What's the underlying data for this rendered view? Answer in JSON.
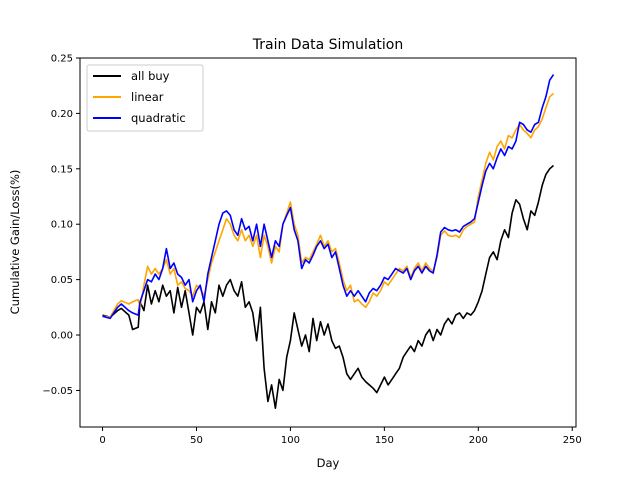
{
  "chart_data": {
    "type": "line",
    "title": "Train Data Simulation",
    "xlabel": "Day",
    "ylabel": "Cumulative Gain/Loss(%)",
    "xlim": [
      -12,
      252
    ],
    "ylim": [
      -0.083,
      0.25
    ],
    "xticks": [
      0,
      50,
      100,
      150,
      200,
      250
    ],
    "yticks": [
      -0.05,
      0.0,
      0.05,
      0.1,
      0.15,
      0.2,
      0.25
    ],
    "xtick_labels": [
      "0",
      "50",
      "100",
      "150",
      "200",
      "250"
    ],
    "ytick_labels": [
      "−0.05",
      "0.00",
      "0.05",
      "0.10",
      "0.15",
      "0.20",
      "0.25"
    ],
    "grid": false,
    "legend_position": "top-left",
    "series": [
      {
        "name": "all buy",
        "color": "#000000",
        "x": [
          0,
          4,
          8,
          10,
          14,
          16,
          19,
          20,
          22,
          24,
          26,
          28,
          30,
          32,
          34,
          36,
          38,
          40,
          42,
          44,
          46,
          48,
          50,
          52,
          54,
          56,
          58,
          60,
          62,
          64,
          66,
          68,
          70,
          72,
          74,
          76,
          78,
          80,
          82,
          84,
          86,
          88,
          90,
          92,
          94,
          96,
          98,
          100,
          102,
          104,
          106,
          108,
          110,
          112,
          114,
          116,
          118,
          120,
          122,
          124,
          126,
          128,
          130,
          132,
          134,
          136,
          138,
          140,
          142,
          144,
          146,
          148,
          150,
          152,
          154,
          156,
          158,
          160,
          162,
          164,
          166,
          168,
          170,
          172,
          174,
          176,
          178,
          180,
          182,
          184,
          186,
          188,
          190,
          192,
          194,
          196,
          198,
          200,
          202,
          204,
          206,
          208,
          210,
          212,
          214,
          216,
          218,
          220,
          222,
          224,
          226,
          228,
          230,
          232,
          234,
          236,
          238,
          240
        ],
        "values": [
          0.018,
          0.016,
          0.022,
          0.024,
          0.018,
          0.005,
          0.007,
          0.03,
          0.022,
          0.045,
          0.028,
          0.04,
          0.03,
          0.045,
          0.035,
          0.04,
          0.02,
          0.043,
          0.025,
          0.04,
          0.02,
          0.0,
          0.025,
          0.02,
          0.03,
          0.005,
          0.03,
          0.02,
          0.045,
          0.035,
          0.045,
          0.05,
          0.04,
          0.035,
          0.048,
          0.025,
          0.03,
          0.02,
          -0.005,
          0.025,
          -0.03,
          -0.06,
          -0.045,
          -0.066,
          -0.04,
          -0.05,
          -0.02,
          -0.005,
          0.02,
          0.005,
          -0.01,
          0.0,
          -0.015,
          0.015,
          -0.005,
          0.012,
          0.0,
          0.01,
          -0.005,
          -0.012,
          -0.01,
          -0.02,
          -0.035,
          -0.04,
          -0.035,
          -0.03,
          -0.038,
          -0.042,
          -0.045,
          -0.048,
          -0.052,
          -0.045,
          -0.038,
          -0.045,
          -0.04,
          -0.035,
          -0.03,
          -0.02,
          -0.015,
          -0.01,
          -0.015,
          -0.005,
          -0.01,
          0.0,
          0.005,
          -0.005,
          0.005,
          0.0,
          0.01,
          0.015,
          0.01,
          0.018,
          0.02,
          0.015,
          0.02,
          0.018,
          0.022,
          0.03,
          0.04,
          0.055,
          0.07,
          0.075,
          0.068,
          0.085,
          0.095,
          0.088,
          0.11,
          0.122,
          0.118,
          0.105,
          0.095,
          0.112,
          0.108,
          0.12,
          0.135,
          0.145,
          0.15,
          0.153
        ]
      },
      {
        "name": "linear",
        "color": "#FFA500",
        "x": [
          0,
          4,
          8,
          10,
          14,
          16,
          19,
          20,
          22,
          24,
          26,
          28,
          30,
          32,
          34,
          36,
          38,
          40,
          42,
          44,
          46,
          48,
          50,
          52,
          54,
          56,
          58,
          60,
          62,
          64,
          66,
          68,
          70,
          72,
          74,
          76,
          78,
          80,
          82,
          84,
          86,
          88,
          90,
          92,
          94,
          96,
          98,
          100,
          102,
          104,
          106,
          108,
          110,
          112,
          114,
          116,
          118,
          120,
          122,
          124,
          126,
          128,
          130,
          132,
          134,
          136,
          138,
          140,
          142,
          144,
          146,
          148,
          150,
          152,
          154,
          156,
          158,
          160,
          162,
          164,
          166,
          168,
          170,
          172,
          174,
          176,
          178,
          180,
          182,
          184,
          186,
          188,
          190,
          192,
          194,
          196,
          198,
          200,
          202,
          204,
          206,
          208,
          210,
          212,
          214,
          216,
          218,
          220,
          222,
          224,
          226,
          228,
          230,
          232,
          234,
          236,
          238,
          240
        ],
        "values": [
          0.017,
          0.016,
          0.028,
          0.031,
          0.028,
          0.03,
          0.032,
          0.025,
          0.045,
          0.062,
          0.055,
          0.06,
          0.055,
          0.06,
          0.068,
          0.055,
          0.06,
          0.045,
          0.048,
          0.042,
          0.04,
          0.035,
          0.045,
          0.042,
          0.035,
          0.05,
          0.065,
          0.075,
          0.085,
          0.095,
          0.105,
          0.1,
          0.09,
          0.085,
          0.095,
          0.085,
          0.09,
          0.08,
          0.09,
          0.07,
          0.09,
          0.08,
          0.065,
          0.08,
          0.075,
          0.1,
          0.11,
          0.12,
          0.1,
          0.09,
          0.065,
          0.07,
          0.068,
          0.075,
          0.082,
          0.09,
          0.08,
          0.085,
          0.075,
          0.078,
          0.065,
          0.05,
          0.04,
          0.045,
          0.03,
          0.032,
          0.028,
          0.025,
          0.03,
          0.038,
          0.035,
          0.04,
          0.048,
          0.045,
          0.05,
          0.055,
          0.06,
          0.058,
          0.062,
          0.052,
          0.06,
          0.065,
          0.058,
          0.065,
          0.06,
          0.058,
          0.07,
          0.09,
          0.094,
          0.09,
          0.089,
          0.09,
          0.088,
          0.095,
          0.098,
          0.1,
          0.102,
          0.125,
          0.14,
          0.155,
          0.165,
          0.158,
          0.17,
          0.175,
          0.168,
          0.18,
          0.178,
          0.185,
          0.19,
          0.185,
          0.182,
          0.178,
          0.185,
          0.188,
          0.195,
          0.205,
          0.215,
          0.218
        ]
      },
      {
        "name": "quadratic",
        "color": "#0000FF",
        "x": [
          0,
          4,
          8,
          10,
          14,
          16,
          19,
          20,
          22,
          24,
          26,
          28,
          30,
          32,
          34,
          36,
          38,
          40,
          42,
          44,
          46,
          48,
          50,
          52,
          54,
          56,
          58,
          60,
          62,
          64,
          66,
          68,
          70,
          72,
          74,
          76,
          78,
          80,
          82,
          84,
          86,
          88,
          90,
          92,
          94,
          96,
          98,
          100,
          102,
          104,
          106,
          108,
          110,
          112,
          114,
          116,
          118,
          120,
          122,
          124,
          126,
          128,
          130,
          132,
          134,
          136,
          138,
          140,
          142,
          144,
          146,
          148,
          150,
          152,
          154,
          156,
          158,
          160,
          162,
          164,
          166,
          168,
          170,
          172,
          174,
          176,
          178,
          180,
          182,
          184,
          186,
          188,
          190,
          192,
          194,
          196,
          198,
          200,
          202,
          204,
          206,
          208,
          210,
          212,
          214,
          216,
          218,
          220,
          222,
          224,
          226,
          228,
          230,
          232,
          234,
          236,
          238,
          240
        ],
        "values": [
          0.017,
          0.015,
          0.025,
          0.028,
          0.022,
          0.02,
          0.018,
          0.03,
          0.04,
          0.05,
          0.048,
          0.055,
          0.05,
          0.06,
          0.078,
          0.06,
          0.065,
          0.055,
          0.052,
          0.045,
          0.05,
          0.03,
          0.04,
          0.045,
          0.03,
          0.055,
          0.07,
          0.085,
          0.1,
          0.11,
          0.112,
          0.108,
          0.095,
          0.09,
          0.105,
          0.095,
          0.098,
          0.085,
          0.1,
          0.08,
          0.1,
          0.085,
          0.07,
          0.085,
          0.08,
          0.1,
          0.108,
          0.115,
          0.095,
          0.085,
          0.06,
          0.068,
          0.065,
          0.072,
          0.08,
          0.085,
          0.078,
          0.082,
          0.07,
          0.075,
          0.06,
          0.045,
          0.035,
          0.04,
          0.035,
          0.04,
          0.035,
          0.03,
          0.038,
          0.042,
          0.04,
          0.045,
          0.052,
          0.05,
          0.055,
          0.06,
          0.058,
          0.056,
          0.06,
          0.05,
          0.058,
          0.062,
          0.056,
          0.062,
          0.058,
          0.056,
          0.072,
          0.093,
          0.097,
          0.095,
          0.094,
          0.095,
          0.093,
          0.098,
          0.1,
          0.102,
          0.105,
          0.12,
          0.135,
          0.148,
          0.155,
          0.15,
          0.16,
          0.168,
          0.162,
          0.17,
          0.168,
          0.175,
          0.192,
          0.19,
          0.185,
          0.183,
          0.19,
          0.192,
          0.205,
          0.215,
          0.23,
          0.235
        ]
      }
    ]
  }
}
